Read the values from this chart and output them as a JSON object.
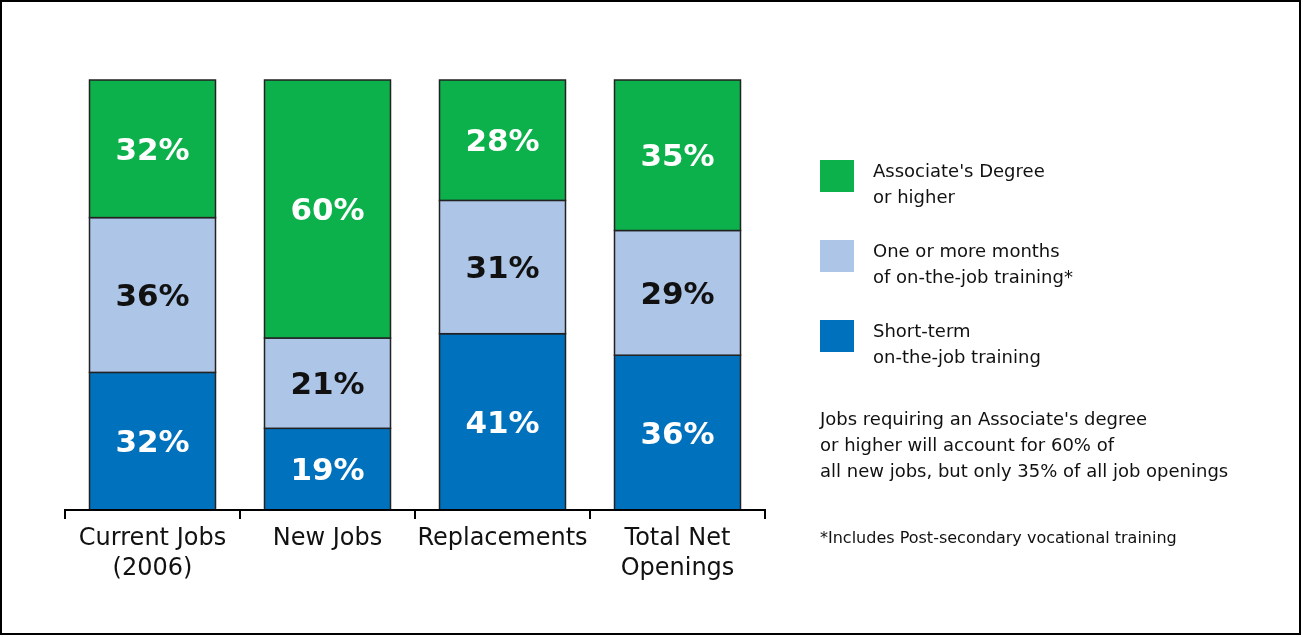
{
  "chart_data": {
    "type": "bar",
    "stacked": true,
    "legend": "right",
    "categories": [
      "Current Jobs (2006)",
      "New Jobs",
      "Replacements",
      "Total Net Openings"
    ],
    "tick_labels": "x",
    "series": [
      {
        "name": "Short-term on-the-job training",
        "color": "#0071bc",
        "values": [
          32,
          19,
          41,
          36
        ],
        "value_labels": [
          "32%",
          "19%",
          "41%",
          "36%"
        ]
      },
      {
        "name": "One or more months of on-the-job training*",
        "color": "#adc5e7",
        "values": [
          36,
          21,
          31,
          29
        ],
        "value_labels": [
          "36%",
          "21%",
          "31%",
          "29%"
        ]
      },
      {
        "name": "Associate's Degree or higher",
        "color": "#0db14b",
        "values": [
          32,
          60,
          28,
          35
        ],
        "value_labels": [
          "32%",
          "60%",
          "28%",
          "35%"
        ]
      }
    ],
    "annotations": [
      "Jobs requiring an Associate's degree or higher will account for 60% of all new jobs, but only 35% of all job openings",
      "*Includes Post-secondary vocational training"
    ]
  }
}
